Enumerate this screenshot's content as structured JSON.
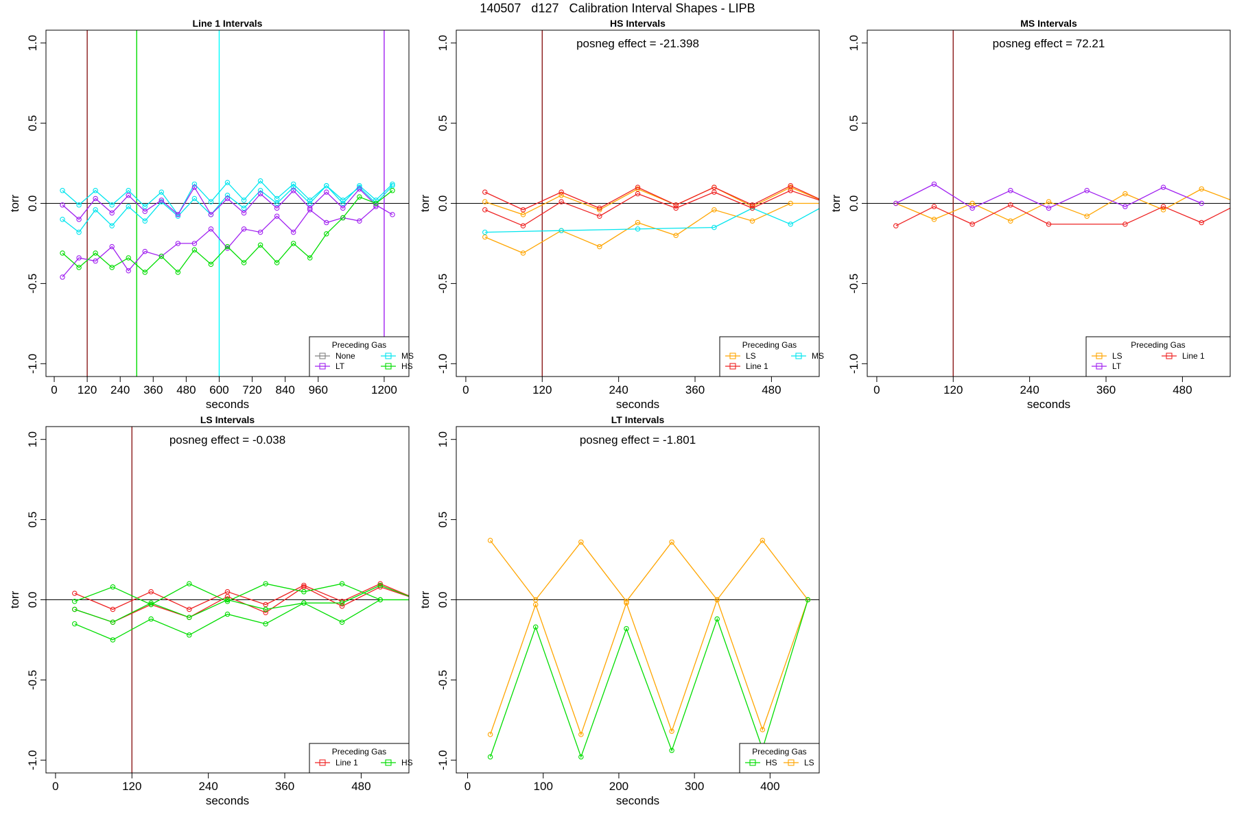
{
  "main_title": "140507   d127   Calibration Interval Shapes - LIPB",
  "chart_data": [
    {
      "type": "line",
      "title": "Line 1 Intervals",
      "xlabel": "seconds",
      "ylabel": "torr",
      "xlim": [
        -30,
        1290
      ],
      "ylim": [
        -1.08,
        1.08
      ],
      "xticks": [
        0,
        120,
        240,
        360,
        480,
        600,
        720,
        840,
        960,
        1200
      ],
      "yticks": [
        -1.0,
        -0.5,
        0.0,
        0.5,
        1.0
      ],
      "ytick_labels": [
        "-1.0",
        "-0.5",
        "0.0",
        "0.5",
        "1.0"
      ],
      "annotation": "",
      "vlines": [
        {
          "x": 120,
          "color": "#8B1A1A"
        },
        {
          "x": 300,
          "color": "#00dd00"
        },
        {
          "x": 600,
          "color": "#00ffff"
        },
        {
          "x": 1200,
          "color": "#a020f0"
        }
      ],
      "legend": {
        "title": "Preceding Gas",
        "position": "bottom-right",
        "columns": 2,
        "entries": [
          {
            "label": "None",
            "color": "#808080"
          },
          {
            "label": "MS",
            "color": "#00e5ee"
          },
          {
            "label": "LT",
            "color": "#a020f0"
          },
          {
            "label": "HS",
            "color": "#00dd00"
          }
        ]
      },
      "series": [
        {
          "name": "MS",
          "color": "#00e5ee",
          "x": [
            30,
            90,
            150,
            210,
            270,
            330,
            390,
            450,
            510,
            570,
            630,
            690,
            750,
            810,
            870,
            930,
            990,
            1050,
            1110,
            1170,
            1230
          ],
          "y": [
            0.08,
            -0.01,
            0.08,
            -0.01,
            0.08,
            -0.02,
            0.07,
            -0.07,
            0.12,
            0.01,
            0.13,
            0.02,
            0.14,
            0.03,
            0.12,
            0.02,
            0.11,
            0.0,
            0.11,
            0.02,
            0.12
          ]
        },
        {
          "name": "MS",
          "color": "#00e5ee",
          "x": [
            30,
            90,
            150,
            210,
            270,
            330,
            390,
            450,
            510,
            570,
            630,
            690,
            750,
            810,
            870,
            930,
            990,
            1050,
            1110,
            1170,
            1230
          ],
          "y": [
            -0.1,
            -0.18,
            -0.04,
            -0.14,
            -0.02,
            -0.11,
            0.01,
            -0.08,
            0.03,
            -0.07,
            0.05,
            -0.03,
            0.08,
            0.0,
            0.1,
            0.0,
            0.11,
            0.02,
            0.1,
            0.0,
            0.11
          ]
        },
        {
          "name": "LT",
          "color": "#a020f0",
          "x": [
            30,
            90,
            150,
            210,
            270,
            330,
            390,
            450,
            510,
            570,
            630,
            690,
            750,
            810,
            870,
            930,
            990,
            1050,
            1110,
            1170,
            1230
          ],
          "y": [
            -0.01,
            -0.1,
            0.03,
            -0.06,
            0.05,
            -0.05,
            0.02,
            -0.07,
            0.1,
            -0.07,
            0.03,
            -0.06,
            0.06,
            -0.03,
            0.08,
            -0.03,
            0.07,
            -0.03,
            0.09,
            -0.01,
            -0.07
          ]
        },
        {
          "name": "LT",
          "color": "#a020f0",
          "x": [
            30,
            90,
            150,
            210,
            270,
            330,
            390,
            450,
            510,
            570,
            630,
            690,
            750,
            810,
            870,
            930,
            990,
            1050,
            1110,
            1170
          ],
          "y": [
            -0.46,
            -0.34,
            -0.36,
            -0.27,
            -0.42,
            -0.3,
            -0.33,
            -0.25,
            -0.25,
            -0.16,
            -0.28,
            -0.16,
            -0.18,
            -0.08,
            -0.18,
            -0.04,
            -0.12,
            -0.09,
            -0.11,
            -0.02
          ]
        },
        {
          "name": "HS",
          "color": "#00dd00",
          "x": [
            30,
            90,
            150,
            210,
            270,
            330,
            390,
            450,
            510,
            570,
            630,
            690,
            750,
            810,
            870,
            930,
            990,
            1050,
            1110,
            1170,
            1230
          ],
          "y": [
            -0.31,
            -0.4,
            -0.31,
            -0.4,
            -0.34,
            -0.43,
            -0.33,
            -0.43,
            -0.29,
            -0.38,
            -0.27,
            -0.37,
            -0.26,
            -0.37,
            -0.25,
            -0.34,
            -0.19,
            -0.09,
            0.04,
            0.0,
            0.08
          ]
        }
      ]
    },
    {
      "type": "line",
      "title": "HS Intervals",
      "xlabel": "seconds",
      "ylabel": "torr",
      "xlim": [
        -15,
        555
      ],
      "ylim": [
        -1.08,
        1.08
      ],
      "xticks": [
        0,
        120,
        240,
        360,
        480
      ],
      "yticks": [
        -1.0,
        -0.5,
        0.0,
        0.5,
        1.0
      ],
      "ytick_labels": [
        "-1.0",
        "-0.5",
        "0.0",
        "0.5",
        "1.0"
      ],
      "annotation": "posneg effect = -21.398",
      "vlines": [
        {
          "x": 120,
          "color": "#8B1A1A"
        }
      ],
      "legend": {
        "title": "Preceding Gas",
        "position": "bottom-right",
        "columns": 2,
        "entries": [
          {
            "label": "LS",
            "color": "#ffa500"
          },
          {
            "label": "MS",
            "color": "#00e5ee"
          },
          {
            "label": "Line 1",
            "color": "#ee2222"
          }
        ]
      },
      "series": [
        {
          "name": "LS",
          "color": "#ffa500",
          "x": [
            30,
            90,
            150,
            210,
            270,
            330,
            390,
            450,
            510,
            570
          ],
          "y": [
            -0.21,
            -0.31,
            -0.17,
            -0.27,
            -0.12,
            -0.2,
            -0.04,
            -0.11,
            0.0,
            0.0
          ]
        },
        {
          "name": "LS",
          "color": "#ffa500",
          "x": [
            30,
            90,
            150,
            210,
            270,
            330,
            390,
            450,
            510,
            570
          ],
          "y": [
            0.01,
            -0.07,
            0.05,
            -0.04,
            0.09,
            -0.01,
            0.1,
            -0.02,
            0.1,
            0.0
          ]
        },
        {
          "name": "MS",
          "color": "#00e5ee",
          "x": [
            30,
            150,
            270,
            390,
            450,
            510,
            570
          ],
          "y": [
            -0.18,
            -0.17,
            -0.16,
            -0.15,
            -0.03,
            -0.13,
            0.0
          ]
        },
        {
          "name": "Line 1",
          "color": "#ee2222",
          "x": [
            30,
            90,
            150,
            210,
            270,
            330,
            390,
            450,
            510,
            570
          ],
          "y": [
            0.07,
            -0.04,
            0.07,
            -0.03,
            0.1,
            -0.01,
            0.1,
            -0.01,
            0.11,
            0.0
          ]
        },
        {
          "name": "Line 1",
          "color": "#ee2222",
          "x": [
            30,
            90,
            150,
            210,
            270,
            330,
            390,
            450,
            510,
            570
          ],
          "y": [
            -0.04,
            -0.14,
            0.01,
            -0.08,
            0.06,
            -0.03,
            0.07,
            -0.03,
            0.08,
            0.0
          ]
        }
      ]
    },
    {
      "type": "line",
      "title": "MS Intervals",
      "xlabel": "seconds",
      "ylabel": "torr",
      "xlim": [
        -15,
        555
      ],
      "ylim": [
        -1.08,
        1.08
      ],
      "xticks": [
        0,
        120,
        240,
        360,
        480
      ],
      "yticks": [
        -1.0,
        -0.5,
        0.0,
        0.5,
        1.0
      ],
      "ytick_labels": [
        "-1.0",
        "-0.5",
        "0.0",
        "0.5",
        "1.0"
      ],
      "annotation": "posneg effect = 72.21",
      "vlines": [
        {
          "x": 120,
          "color": "#8B1A1A"
        }
      ],
      "legend": {
        "title": "Preceding Gas",
        "position": "bottom-right",
        "columns": 2,
        "entries": [
          {
            "label": "LS",
            "color": "#ffa500"
          },
          {
            "label": "Line 1",
            "color": "#ee2222"
          },
          {
            "label": "LT",
            "color": "#a020f0"
          }
        ]
      },
      "series": [
        {
          "name": "LS",
          "color": "#ffa500",
          "x": [
            30,
            90,
            150,
            210,
            270,
            330,
            390,
            450,
            510,
            570
          ],
          "y": [
            0.0,
            -0.1,
            0.0,
            -0.11,
            0.01,
            -0.08,
            0.06,
            -0.04,
            0.09,
            0.0
          ]
        },
        {
          "name": "LT",
          "color": "#a020f0",
          "x": [
            30,
            90,
            150,
            210,
            270,
            330,
            390,
            450,
            510
          ],
          "y": [
            0.0,
            0.12,
            -0.03,
            0.08,
            -0.03,
            0.08,
            -0.02,
            0.1,
            0.0
          ]
        },
        {
          "name": "Line 1",
          "color": "#ee2222",
          "x": [
            30,
            90,
            150,
            210,
            270,
            390,
            450,
            510,
            570
          ],
          "y": [
            -0.14,
            -0.02,
            -0.13,
            -0.01,
            -0.13,
            -0.13,
            -0.02,
            -0.12,
            0.0
          ]
        }
      ]
    },
    {
      "type": "line",
      "title": "LS Intervals",
      "xlabel": "seconds",
      "ylabel": "torr",
      "xlim": [
        -15,
        555
      ],
      "ylim": [
        -1.08,
        1.08
      ],
      "xticks": [
        0,
        120,
        240,
        360,
        480
      ],
      "yticks": [
        -1.0,
        -0.5,
        0.0,
        0.5,
        1.0
      ],
      "ytick_labels": [
        "-1.0",
        "-0.5",
        "0.0",
        "0.5",
        "1.0"
      ],
      "annotation": "posneg effect = -0.038",
      "vlines": [
        {
          "x": 120,
          "color": "#8B1A1A"
        }
      ],
      "legend": {
        "title": "Preceding Gas",
        "position": "bottom-right",
        "columns": 2,
        "entries": [
          {
            "label": "Line 1",
            "color": "#ee2222"
          },
          {
            "label": "HS",
            "color": "#00dd00"
          }
        ]
      },
      "series": [
        {
          "name": "Line 1",
          "color": "#ee2222",
          "x": [
            30,
            90,
            150,
            210,
            270,
            330,
            390,
            450,
            510,
            570
          ],
          "y": [
            0.04,
            -0.06,
            0.05,
            -0.06,
            0.05,
            -0.03,
            0.09,
            -0.01,
            0.1,
            0.0
          ]
        },
        {
          "name": "Line 1",
          "color": "#ee2222",
          "x": [
            30,
            90,
            150,
            210,
            270,
            330,
            390,
            450,
            510,
            570
          ],
          "y": [
            -0.06,
            -0.14,
            -0.03,
            -0.11,
            0.02,
            -0.08,
            0.08,
            -0.04,
            0.08,
            0.0
          ]
        },
        {
          "name": "HS",
          "color": "#00dd00",
          "x": [
            30,
            90,
            150,
            210,
            270,
            330,
            390,
            450,
            510,
            570
          ],
          "y": [
            -0.01,
            0.08,
            -0.03,
            0.1,
            -0.01,
            0.1,
            0.05,
            0.1,
            0.0,
            0.0
          ]
        },
        {
          "name": "HS",
          "color": "#00dd00",
          "x": [
            30,
            90,
            150,
            210,
            270,
            330,
            390,
            450,
            510,
            570
          ],
          "y": [
            -0.06,
            -0.14,
            -0.02,
            -0.11,
            0.0,
            -0.06,
            -0.02,
            -0.02,
            0.09,
            0.0
          ]
        },
        {
          "name": "HS",
          "color": "#00dd00",
          "x": [
            30,
            90,
            150,
            210,
            270,
            330,
            390,
            450,
            510,
            570
          ],
          "y": [
            -0.15,
            -0.25,
            -0.12,
            -0.22,
            -0.09,
            -0.15,
            -0.02,
            -0.14,
            0.0,
            0.0
          ]
        }
      ]
    },
    {
      "type": "line",
      "title": "LT Intervals",
      "xlabel": "seconds",
      "ylabel": "torr",
      "xlim": [
        -15,
        465
      ],
      "ylim": [
        -1.08,
        1.08
      ],
      "xticks": [
        0,
        100,
        200,
        300,
        400
      ],
      "yticks": [
        -1.0,
        -0.5,
        0.0,
        0.5,
        1.0
      ],
      "ytick_labels": [
        "-1.0",
        "-0.5",
        "0.0",
        "0.5",
        "1.0"
      ],
      "annotation": "posneg effect = -1.801",
      "vlines": [],
      "legend": {
        "title": "Preceding Gas",
        "position": "bottom-right",
        "columns": 2,
        "entries": [
          {
            "label": "HS",
            "color": "#00dd00"
          },
          {
            "label": "LS",
            "color": "#ffa500"
          }
        ]
      },
      "series": [
        {
          "name": "LS",
          "color": "#ffa500",
          "x": [
            30,
            90,
            150,
            210,
            270,
            330,
            390,
            450
          ],
          "y": [
            0.37,
            0.0,
            0.36,
            -0.01,
            0.36,
            0.0,
            0.37,
            0.0
          ]
        },
        {
          "name": "LS",
          "color": "#ffa500",
          "x": [
            30,
            90,
            150,
            210,
            270,
            330,
            390,
            450
          ],
          "y": [
            -0.84,
            -0.03,
            -0.84,
            -0.02,
            -0.82,
            0.0,
            -0.81,
            0.0
          ]
        },
        {
          "name": "HS",
          "color": "#00dd00",
          "x": [
            30,
            90,
            150,
            210,
            270,
            330,
            390,
            450
          ],
          "y": [
            -0.98,
            -0.17,
            -0.98,
            -0.18,
            -0.94,
            -0.12,
            -0.93,
            0.0
          ]
        }
      ]
    }
  ]
}
